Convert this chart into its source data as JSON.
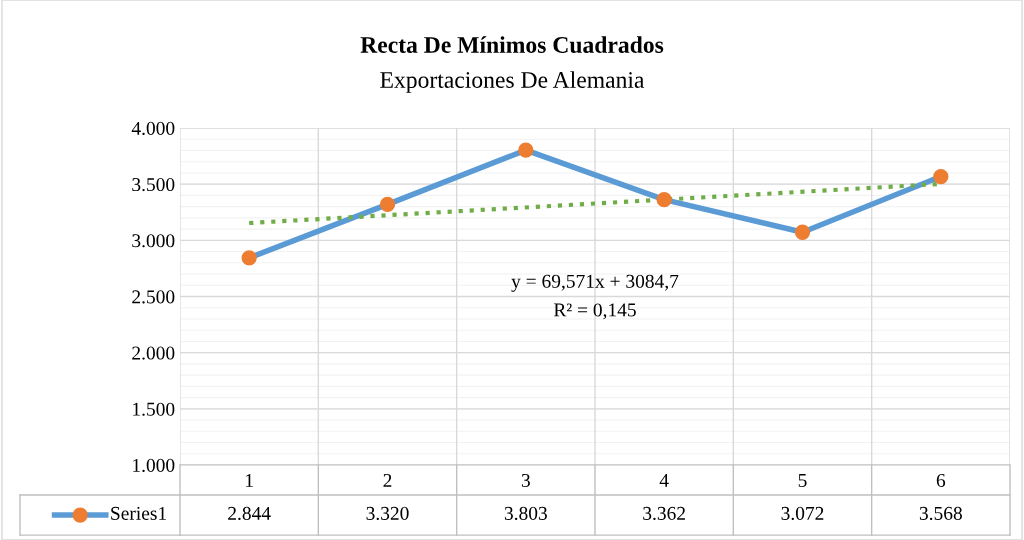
{
  "chart_data": {
    "type": "line",
    "title": "Recta De Mínimos Cuadrados",
    "subtitle": "Exportaciones De Alemania",
    "categories": [
      "1",
      "2",
      "3",
      "4",
      "5",
      "6"
    ],
    "series": [
      {
        "name": "Series1",
        "color": "#5b9bd5",
        "colors": [
          "#ed7d31",
          "#ed7d31",
          "#ed7d31",
          "#ed7d31",
          "#ed7d31",
          "#ed7d31"
        ],
        "values": [
          2844,
          3320,
          3803,
          3362,
          3072,
          3568
        ],
        "marker": "circle",
        "line_style": "solid"
      },
      {
        "type": "line",
        "color": "#70ad47",
        "x": [
          "1",
          "6"
        ],
        "values": [
          3154,
          3502
        ],
        "marker": "none",
        "line_style": "dotted"
      }
    ],
    "ylim": [
      1000,
      4000
    ],
    "yticks": [
      {
        "value": 1000,
        "label": "1.000"
      },
      {
        "value": 1500,
        "label": "1.500"
      },
      {
        "value": 2000,
        "label": "2.000"
      },
      {
        "value": 2500,
        "label": "2.500"
      },
      {
        "value": 3000,
        "label": "3.000"
      },
      {
        "value": 3500,
        "label": "3.500"
      },
      {
        "value": 4000,
        "label": "4.000"
      }
    ],
    "value_labels": [
      "2.844",
      "3.320",
      "3.803",
      "3.362",
      "3.072",
      "3.568"
    ],
    "annotations": [
      "y = 69,571x + 3084,7",
      "R² = 0,145"
    ],
    "grid": true,
    "legend": "bottom"
  }
}
